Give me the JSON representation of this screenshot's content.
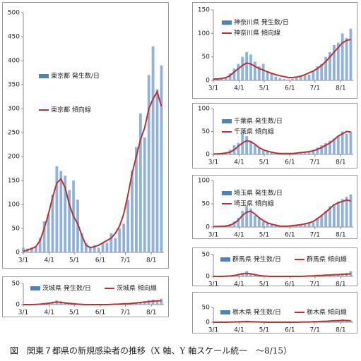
{
  "caption": "図　関東７都県の新規感染者の推移（X 軸、Y 軸スケール統一　～8/15）",
  "chart_data": [
    {
      "type": "combo",
      "legend_position": "center-left",
      "xlim": [
        0,
        168
      ],
      "ylim": [
        0,
        500
      ],
      "yticks": [
        0,
        50,
        100,
        150,
        200,
        250,
        300,
        350,
        400,
        450,
        500
      ],
      "grid": false,
      "xticks": [
        {
          "value": 0,
          "label": "3/1"
        },
        {
          "value": 31,
          "label": "4/1"
        },
        {
          "value": 61,
          "label": "5/1"
        },
        {
          "value": 92,
          "label": "6/1"
        },
        {
          "value": 122,
          "label": "7/1"
        },
        {
          "value": 153,
          "label": "8/1"
        }
      ],
      "x": [
        0,
        5,
        10,
        15,
        20,
        25,
        30,
        35,
        40,
        45,
        50,
        55,
        60,
        65,
        70,
        75,
        80,
        85,
        90,
        95,
        100,
        105,
        110,
        115,
        120,
        125,
        130,
        135,
        140,
        145,
        150,
        155,
        160,
        165
      ],
      "series": [
        {
          "name": "東京都 発生数/日",
          "kind": "bar",
          "color": "#8eb1dd",
          "values": [
            10,
            8,
            10,
            12,
            30,
            65,
            80,
            120,
            180,
            170,
            160,
            130,
            150,
            110,
            40,
            20,
            10,
            15,
            10,
            20,
            20,
            40,
            30,
            50,
            60,
            110,
            170,
            220,
            290,
            240,
            370,
            430,
            340,
            390
          ]
        },
        {
          "name": "東京都 傾向線",
          "kind": "line",
          "color": "#b83232",
          "values": [
            2,
            5,
            8,
            12,
            25,
            50,
            80,
            115,
            145,
            153,
            135,
            100,
            75,
            60,
            35,
            15,
            10,
            12,
            15,
            20,
            25,
            30,
            40,
            55,
            80,
            120,
            165,
            200,
            235,
            260,
            300,
            320,
            335,
            305
          ]
        }
      ]
    },
    {
      "type": "combo",
      "legend_position": "top",
      "xlim": [
        0,
        168
      ],
      "ylim": [
        0,
        50
      ],
      "yticks": [
        0,
        50
      ],
      "grid": false,
      "xticks": [
        {
          "value": 0,
          "label": "3/1"
        },
        {
          "value": 31,
          "label": "4/1"
        },
        {
          "value": 61,
          "label": "5/1"
        },
        {
          "value": 92,
          "label": "6/1"
        },
        {
          "value": 122,
          "label": "7/1"
        },
        {
          "value": 153,
          "label": "8/1"
        }
      ],
      "x": [
        0,
        5,
        10,
        15,
        20,
        25,
        30,
        35,
        40,
        45,
        50,
        55,
        60,
        65,
        70,
        75,
        80,
        85,
        90,
        95,
        100,
        105,
        110,
        115,
        120,
        125,
        130,
        135,
        140,
        145,
        150,
        155,
        160,
        165
      ],
      "series": [
        {
          "name": "茨城県 発生数/日",
          "kind": "bar",
          "color": "#8eb1dd",
          "values": [
            0,
            0,
            0,
            1,
            2,
            3,
            5,
            6,
            10,
            8,
            4,
            2,
            1,
            0,
            0,
            0,
            0,
            0,
            0,
            0,
            0,
            1,
            1,
            2,
            2,
            3,
            4,
            5,
            6,
            8,
            10,
            12,
            10,
            14
          ]
        },
        {
          "name": "茨城県 傾向線",
          "kind": "line",
          "color": "#b83232",
          "values": [
            0,
            0,
            0,
            0.5,
            1,
            2,
            3,
            5,
            6,
            5,
            4,
            3,
            2,
            1,
            0.5,
            0,
            0,
            0,
            0,
            0,
            0,
            0.5,
            1,
            1,
            2,
            2,
            3,
            4,
            5,
            6,
            7,
            8,
            9,
            9
          ]
        }
      ]
    },
    {
      "type": "combo",
      "legend_position": "top-left",
      "xlim": [
        0,
        168
      ],
      "ylim": [
        0,
        150
      ],
      "yticks": [
        0,
        50,
        100,
        150
      ],
      "grid": false,
      "xticks": [
        {
          "value": 0,
          "label": "3/1"
        },
        {
          "value": 31,
          "label": "4/1"
        },
        {
          "value": 61,
          "label": "5/1"
        },
        {
          "value": 92,
          "label": "6/1"
        },
        {
          "value": 122,
          "label": "7/1"
        },
        {
          "value": 153,
          "label": "8/1"
        }
      ],
      "x": [
        0,
        5,
        10,
        15,
        20,
        25,
        30,
        35,
        40,
        45,
        50,
        55,
        60,
        65,
        70,
        75,
        80,
        85,
        90,
        95,
        100,
        105,
        110,
        115,
        120,
        125,
        130,
        135,
        140,
        145,
        150,
        155,
        160,
        165
      ],
      "series": [
        {
          "name": "神奈川県 発生数/日",
          "kind": "bar",
          "color": "#8eb1dd",
          "values": [
            2,
            3,
            4,
            5,
            15,
            25,
            35,
            50,
            60,
            55,
            40,
            30,
            35,
            20,
            15,
            8,
            5,
            3,
            2,
            3,
            5,
            8,
            10,
            12,
            20,
            30,
            35,
            50,
            60,
            75,
            80,
            100,
            90,
            110
          ]
        },
        {
          "name": "神奈川県 傾向線",
          "kind": "line",
          "color": "#b83232",
          "values": [
            3,
            3,
            4,
            6,
            10,
            18,
            25,
            32,
            37,
            35,
            30,
            25,
            22,
            18,
            15,
            12,
            10,
            8,
            6,
            6,
            7,
            9,
            12,
            16,
            20,
            25,
            32,
            40,
            50,
            60,
            70,
            80,
            85,
            87
          ]
        }
      ]
    },
    {
      "type": "combo",
      "legend_position": "top-left",
      "xlim": [
        0,
        168
      ],
      "ylim": [
        0,
        100
      ],
      "yticks": [
        0,
        50,
        100
      ],
      "grid": false,
      "xticks": [
        {
          "value": 0,
          "label": "3/1"
        },
        {
          "value": 31,
          "label": "4/1"
        },
        {
          "value": 61,
          "label": "5/1"
        },
        {
          "value": 92,
          "label": "6/1"
        },
        {
          "value": 122,
          "label": "7/1"
        },
        {
          "value": 153,
          "label": "8/1"
        }
      ],
      "x": [
        0,
        5,
        10,
        15,
        20,
        25,
        30,
        35,
        40,
        45,
        50,
        55,
        60,
        65,
        70,
        75,
        80,
        85,
        90,
        95,
        100,
        105,
        110,
        115,
        120,
        125,
        130,
        135,
        140,
        145,
        150,
        155,
        160,
        165
      ],
      "series": [
        {
          "name": "千葉県 発生数/日",
          "kind": "bar",
          "color": "#8eb1dd",
          "values": [
            1,
            2,
            3,
            5,
            10,
            20,
            25,
            45,
            40,
            30,
            20,
            15,
            10,
            8,
            5,
            3,
            2,
            2,
            2,
            2,
            3,
            5,
            6,
            8,
            10,
            15,
            20,
            25,
            30,
            35,
            40,
            50,
            45,
            50
          ]
        },
        {
          "name": "千葉県 傾向線",
          "kind": "line",
          "color": "#b83232",
          "values": [
            1,
            1,
            2,
            3,
            5,
            10,
            18,
            25,
            30,
            28,
            22,
            15,
            10,
            7,
            5,
            3,
            2,
            2,
            2,
            2,
            3,
            4,
            5,
            6,
            8,
            11,
            15,
            20,
            25,
            32,
            40,
            45,
            50,
            49
          ]
        }
      ]
    },
    {
      "type": "combo",
      "legend_position": "top-left",
      "xlim": [
        0,
        168
      ],
      "ylim": [
        0,
        100
      ],
      "yticks": [
        0,
        50,
        100
      ],
      "grid": false,
      "xticks": [
        {
          "value": 0,
          "label": "3/1"
        },
        {
          "value": 31,
          "label": "4/1"
        },
        {
          "value": 61,
          "label": "5/1"
        },
        {
          "value": 92,
          "label": "6/1"
        },
        {
          "value": 122,
          "label": "7/1"
        },
        {
          "value": 153,
          "label": "8/1"
        }
      ],
      "x": [
        0,
        5,
        10,
        15,
        20,
        25,
        30,
        35,
        40,
        45,
        50,
        55,
        60,
        65,
        70,
        75,
        80,
        85,
        90,
        95,
        100,
        105,
        110,
        115,
        120,
        125,
        130,
        135,
        140,
        145,
        150,
        155,
        160,
        165
      ],
      "series": [
        {
          "name": "埼玉県 発生数/日",
          "kind": "bar",
          "color": "#8eb1dd",
          "values": [
            1,
            2,
            3,
            4,
            6,
            12,
            20,
            35,
            45,
            40,
            25,
            20,
            12,
            8,
            5,
            3,
            2,
            2,
            2,
            3,
            4,
            5,
            6,
            8,
            10,
            20,
            25,
            35,
            45,
            50,
            55,
            60,
            65,
            70
          ]
        },
        {
          "name": "埼玉県 傾向線",
          "kind": "line",
          "color": "#b83232",
          "values": [
            1,
            1,
            2,
            2,
            4,
            8,
            15,
            25,
            32,
            34,
            28,
            20,
            14,
            9,
            6,
            4,
            2,
            2,
            2,
            3,
            4,
            5,
            7,
            9,
            12,
            18,
            25,
            32,
            40,
            48,
            52,
            55,
            58,
            56
          ]
        }
      ]
    },
    {
      "type": "combo",
      "legend_position": "top",
      "xlim": [
        0,
        168
      ],
      "ylim": [
        0,
        50
      ],
      "yticks": [
        0,
        50
      ],
      "grid": false,
      "xticks": [
        {
          "value": 0,
          "label": "3/1"
        },
        {
          "value": 31,
          "label": "4/1"
        },
        {
          "value": 61,
          "label": "5/1"
        },
        {
          "value": 92,
          "label": "6/1"
        },
        {
          "value": 122,
          "label": "7/1"
        },
        {
          "value": 153,
          "label": "8/1"
        }
      ],
      "x": [
        0,
        5,
        10,
        15,
        20,
        25,
        30,
        35,
        40,
        45,
        50,
        55,
        60,
        65,
        70,
        75,
        80,
        85,
        90,
        95,
        100,
        105,
        110,
        115,
        120,
        125,
        130,
        135,
        140,
        145,
        150,
        155,
        160,
        165
      ],
      "series": [
        {
          "name": "群馬県 発生数/日",
          "kind": "bar",
          "color": "#8eb1dd",
          "values": [
            0,
            0,
            0,
            1,
            2,
            3,
            5,
            8,
            12,
            6,
            3,
            2,
            1,
            0,
            0,
            0,
            0,
            0,
            0,
            0,
            0,
            0,
            1,
            1,
            2,
            2,
            3,
            3,
            4,
            5,
            6,
            5,
            8,
            12
          ]
        },
        {
          "name": "群馬県 傾向線",
          "kind": "line",
          "color": "#b83232",
          "values": [
            0,
            0,
            0,
            0.5,
            1,
            2,
            4,
            6,
            7,
            6,
            4,
            2,
            1,
            0.5,
            0,
            0,
            0,
            0,
            0,
            0,
            0,
            0,
            0.5,
            1,
            1,
            2,
            2,
            3,
            3,
            4,
            4,
            5,
            5,
            6
          ]
        }
      ]
    },
    {
      "type": "combo",
      "legend_position": "top",
      "xlim": [
        0,
        168
      ],
      "ylim": [
        0,
        50
      ],
      "yticks": [
        0,
        50
      ],
      "grid": false,
      "xticks": [
        {
          "value": 0,
          "label": "3/1"
        },
        {
          "value": 31,
          "label": "4/1"
        },
        {
          "value": 61,
          "label": "5/1"
        },
        {
          "value": 92,
          "label": "6/1"
        },
        {
          "value": 122,
          "label": "7/1"
        },
        {
          "value": 153,
          "label": "8/1"
        }
      ],
      "x": [
        0,
        5,
        10,
        15,
        20,
        25,
        30,
        35,
        40,
        45,
        50,
        55,
        60,
        65,
        70,
        75,
        80,
        85,
        90,
        95,
        100,
        105,
        110,
        115,
        120,
        125,
        130,
        135,
        140,
        145,
        150,
        155,
        160,
        165
      ],
      "series": [
        {
          "name": "栃木県 発生数/日",
          "kind": "bar",
          "color": "#8eb1dd",
          "values": [
            0,
            0,
            0,
            0,
            1,
            1,
            2,
            3,
            5,
            3,
            2,
            1,
            0,
            0,
            0,
            0,
            0,
            0,
            0,
            0,
            0,
            1,
            1,
            2,
            2,
            3,
            3,
            4,
            5,
            6,
            8,
            10,
            8,
            6
          ]
        },
        {
          "name": "栃木県 傾向線",
          "kind": "line",
          "color": "#b83232",
          "values": [
            0,
            0,
            0,
            0,
            0.5,
            1,
            1.5,
            2,
            2.5,
            2,
            1.5,
            1,
            0.5,
            0,
            0,
            0,
            0,
            0,
            0,
            0,
            0,
            0.5,
            1,
            1,
            2,
            2,
            3,
            3,
            4,
            5,
            5,
            6,
            6,
            5
          ]
        }
      ]
    }
  ]
}
